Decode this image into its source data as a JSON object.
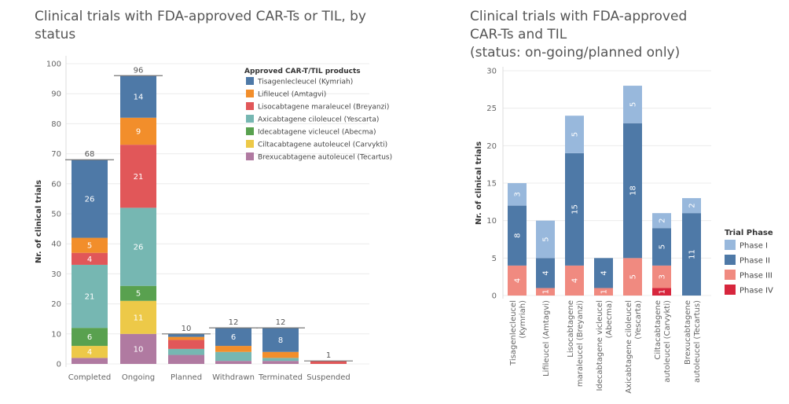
{
  "chart_data": [
    {
      "type": "bar",
      "stacked": true,
      "title": "Clinical trials with FDA-approved CAR-Ts or TIL, by status",
      "ylabel": "Nr. of clinical trials",
      "ylim": [
        0,
        100
      ],
      "yticks": [
        0,
        10,
        20,
        30,
        40,
        50,
        60,
        70,
        80,
        90,
        100
      ],
      "grid": true,
      "categories": [
        "Completed",
        "Ongoing",
        "Planned",
        "Withdrawn",
        "Terminated",
        "Suspended"
      ],
      "totals": [
        68,
        96,
        10,
        12,
        12,
        1
      ],
      "legend_title": "Approved CAR-T/TIL products",
      "legend_position": "top-right",
      "series": [
        {
          "name": "Brexucabtagene autoleucel (Tecartus)",
          "color": "#b07aa1",
          "values": [
            2,
            10,
            3,
            1,
            1,
            0
          ],
          "labels": [
            "",
            "10",
            "",
            "",
            "",
            ""
          ]
        },
        {
          "name": "Ciltacabtagene autoleucel (Carvykti)",
          "color": "#edc948",
          "values": [
            4,
            11,
            0,
            0,
            0,
            0
          ],
          "labels": [
            "4",
            "11",
            "",
            "",
            "",
            ""
          ]
        },
        {
          "name": "Idecabtagene vicleucel (Abecma)",
          "color": "#59a14f",
          "values": [
            6,
            5,
            0,
            0,
            0,
            0
          ],
          "labels": [
            "6",
            "5",
            "",
            "",
            "",
            ""
          ]
        },
        {
          "name": "Axicabtagene ciloleucel (Yescarta)",
          "color": "#76b7b2",
          "values": [
            21,
            26,
            2,
            3,
            1,
            0
          ],
          "labels": [
            "21",
            "26",
            "",
            "",
            "",
            ""
          ]
        },
        {
          "name": "Lisocabtagene maraleucel (Breyanzi)",
          "color": "#e15759",
          "values": [
            4,
            21,
            3,
            0,
            0,
            1
          ],
          "labels": [
            "4",
            "21",
            "",
            "",
            "",
            ""
          ]
        },
        {
          "name": "Lifileucel (Amtagvi)",
          "color": "#f28e2b",
          "values": [
            5,
            9,
            1,
            2,
            2,
            0
          ],
          "labels": [
            "5",
            "9",
            "",
            "",
            "",
            ""
          ]
        },
        {
          "name": "Tisagenlecleucel (Kymriah)",
          "color": "#4e79a7",
          "values": [
            26,
            14,
            1,
            6,
            8,
            0
          ],
          "labels": [
            "26",
            "14",
            "",
            "6",
            "8",
            ""
          ]
        }
      ]
    },
    {
      "type": "bar",
      "stacked": true,
      "title_lines": [
        "Clinical trials with FDA-approved",
        "CAR-Ts and TIL",
        "(status: on-going/planned only)"
      ],
      "ylabel": "Nr. of clinical trials",
      "ylim": [
        0,
        30
      ],
      "yticks": [
        0,
        5,
        10,
        15,
        20,
        25,
        30
      ],
      "grid": true,
      "categories": [
        [
          "Tisagenlecleucel",
          "(Kymriah)"
        ],
        [
          "Lifileucel (Amtagvi)"
        ],
        [
          "Lisocabtagene",
          "maraleucel (Breyanzi)"
        ],
        [
          "Idecabtagene vicleucel",
          "(Abecma)"
        ],
        [
          "Axicabtagene ciloleucel",
          "(Yescarta)"
        ],
        [
          "Ciltacabtagene",
          "autoleucel (Carvykti)"
        ],
        [
          "Brexucabtagene",
          "autoleucel (Tecartus)"
        ]
      ],
      "legend_title": "Trial Phase",
      "legend_position": "right",
      "series": [
        {
          "name": "Phase IV",
          "color": "#d7263d",
          "values": [
            0,
            0,
            0,
            0,
            0,
            1,
            0
          ],
          "labels": [
            "",
            "",
            "",
            "",
            "",
            "1",
            ""
          ]
        },
        {
          "name": "Phase III",
          "color": "#f08a80",
          "values": [
            4,
            1,
            4,
            1,
            5,
            3,
            0
          ],
          "labels": [
            "4",
            "1",
            "4",
            "1",
            "5",
            "3",
            ""
          ]
        },
        {
          "name": "Phase II",
          "color": "#4e79a7",
          "values": [
            8,
            4,
            15,
            4,
            18,
            5,
            11
          ],
          "labels": [
            "8",
            "4",
            "15",
            "4",
            "18",
            "5",
            "11"
          ]
        },
        {
          "name": "Phase I",
          "color": "#98b8dc",
          "values": [
            3,
            5,
            5,
            0,
            5,
            2,
            2
          ],
          "labels": [
            "3",
            "5",
            "5",
            "",
            "5",
            "2",
            "2"
          ]
        }
      ],
      "legend_order": [
        "Phase I",
        "Phase II",
        "Phase III",
        "Phase IV"
      ]
    }
  ]
}
